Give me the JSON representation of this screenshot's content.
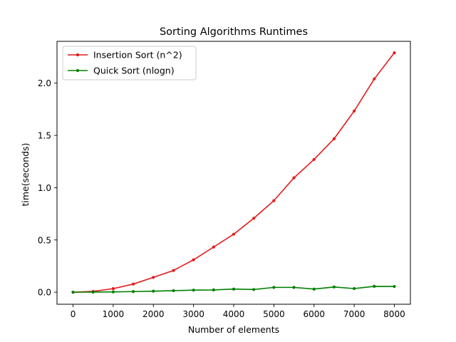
{
  "chart_data": {
    "type": "line",
    "title": "Sorting Algorithms Runtimes",
    "xlabel": "Number of elements",
    "ylabel": "time(seconds)",
    "xlim": [
      -400,
      8400
    ],
    "ylim": [
      -0.115,
      2.4
    ],
    "xticks": [
      0,
      1000,
      2000,
      3000,
      4000,
      5000,
      6000,
      7000,
      8000
    ],
    "xtick_labels": [
      "0",
      "1000",
      "2000",
      "3000",
      "4000",
      "5000",
      "6000",
      "7000",
      "8000"
    ],
    "yticks": [
      0.0,
      0.5,
      1.0,
      1.5,
      2.0
    ],
    "ytick_labels": [
      "0.0",
      "0.5",
      "1.0",
      "1.5",
      "2.0"
    ],
    "grid": false,
    "legend_position": "top-left",
    "x": [
      0,
      500,
      1000,
      1500,
      2000,
      2500,
      3000,
      3500,
      4000,
      4500,
      5000,
      5500,
      6000,
      6500,
      7000,
      7500,
      8000
    ],
    "series": [
      {
        "name": "Insertion Sort (n^2)",
        "color": "#e41a1c",
        "values": [
          0.0,
          0.008,
          0.034,
          0.078,
          0.142,
          0.208,
          0.31,
          0.432,
          0.555,
          0.707,
          0.876,
          1.094,
          1.27,
          1.468,
          1.733,
          2.04,
          2.29
        ]
      },
      {
        "name": "Quick Sort (nlogn)",
        "color": "#008000",
        "values": [
          0.0,
          0.001,
          0.003,
          0.006,
          0.01,
          0.015,
          0.02,
          0.022,
          0.03,
          0.026,
          0.046,
          0.046,
          0.03,
          0.05,
          0.035,
          0.056,
          0.055
        ]
      }
    ]
  }
}
